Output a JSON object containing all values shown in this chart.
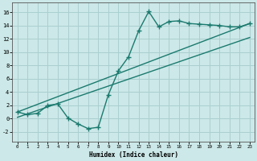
{
  "xlabel": "Humidex (Indice chaleur)",
  "xlim": [
    -0.5,
    23.5
  ],
  "ylim": [
    -3.5,
    17.5
  ],
  "bg_color": "#cce8e8",
  "grid_color": "#aacfcf",
  "line_color": "#1a7a6e",
  "xticks": [
    0,
    1,
    2,
    3,
    4,
    5,
    6,
    7,
    8,
    9,
    10,
    11,
    12,
    13,
    14,
    15,
    16,
    17,
    18,
    19,
    20,
    21,
    22,
    23
  ],
  "yticks": [
    -2,
    0,
    2,
    4,
    6,
    8,
    10,
    12,
    14,
    16
  ],
  "line1_x": [
    0,
    1,
    2,
    3,
    4,
    5,
    6,
    7,
    8,
    9,
    10,
    11,
    12,
    13,
    14,
    15,
    16,
    17,
    18,
    19,
    20,
    21,
    22,
    23
  ],
  "line1_y": [
    1.0,
    0.6,
    0.8,
    2.0,
    2.2,
    0.1,
    -0.8,
    -1.5,
    -1.3,
    3.6,
    7.2,
    9.3,
    13.2,
    16.1,
    13.8,
    14.6,
    14.7,
    14.3,
    14.2,
    14.1,
    14.0,
    13.8,
    13.8,
    14.3
  ],
  "line2_x": [
    0,
    23
  ],
  "line2_y": [
    1.0,
    14.3
  ],
  "line3_x": [
    0,
    23
  ],
  "line3_y": [
    0.2,
    12.2
  ],
  "markersize": 2.5,
  "linewidth": 1.0
}
